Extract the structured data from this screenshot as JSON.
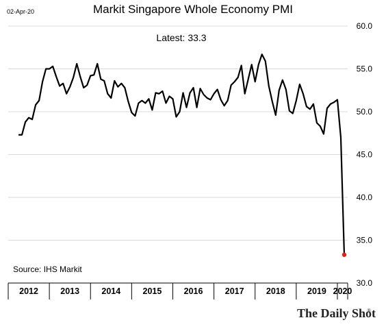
{
  "header": {
    "date_stamp": "02-Apr-20",
    "title": "Markit Singapore Whole Economy PMI",
    "latest_label": "Latest:  33.3"
  },
  "footer": {
    "source": "Source: IHS Markit",
    "brand": "The Daily Shot",
    "brand_mark": "®"
  },
  "colors": {
    "line": "#000000",
    "latest_point": "#e8201c",
    "grid": "#d9d9d9",
    "axis": "#000000"
  },
  "chart_data": {
    "type": "line",
    "title": "Markit Singapore Whole Economy PMI",
    "xlabel": "",
    "ylabel": "",
    "ylim": [
      30,
      60
    ],
    "yticks": [
      30,
      35,
      40,
      45,
      50,
      55,
      60
    ],
    "ytick_labels": [
      "30.0",
      "35.0",
      "40.0",
      "45.0",
      "50.0",
      "55.0",
      "60.0"
    ],
    "y_axis_side": "right",
    "grid": "horizontal",
    "xlim": [
      "2012-01",
      "2020-04"
    ],
    "x_year_labels": [
      "2012",
      "2013",
      "2014",
      "2015",
      "2016",
      "2017",
      "2018",
      "2019",
      "2020"
    ],
    "series": [
      {
        "name": "",
        "start": "2012-04",
        "frequency": "monthly",
        "values": [
          47.3,
          47.3,
          48.8,
          49.3,
          49.1,
          50.8,
          51.3,
          53.5,
          55.0,
          55.0,
          55.3,
          54.1,
          53.0,
          53.3,
          52.1,
          52.9,
          54.0,
          55.6,
          54.1,
          52.8,
          53.1,
          54.2,
          54.3,
          55.6,
          53.8,
          53.6,
          52.1,
          51.6,
          53.6,
          52.9,
          53.3,
          52.8,
          51.2,
          49.9,
          49.5,
          51.0,
          51.3,
          51.0,
          51.5,
          50.2,
          52.2,
          52.1,
          52.4,
          51.0,
          51.8,
          51.5,
          49.4,
          50.0,
          52.2,
          50.5,
          52.2,
          52.8,
          50.5,
          52.7,
          52.0,
          51.6,
          51.4,
          52.1,
          52.6,
          51.4,
          50.7,
          51.3,
          53.1,
          53.5,
          54.0,
          55.4,
          52.1,
          53.8,
          55.5,
          53.5,
          55.5,
          56.7,
          55.9,
          53.0,
          51.2,
          49.6,
          52.5,
          53.7,
          52.6,
          50.1,
          49.8,
          51.3,
          53.2,
          52.1,
          50.6,
          50.3,
          50.9,
          48.7,
          48.3,
          47.4,
          50.4,
          50.9,
          51.1,
          51.4,
          47.0,
          33.3
        ]
      }
    ],
    "latest_value": 33.3,
    "latest_date": "2020-03"
  }
}
